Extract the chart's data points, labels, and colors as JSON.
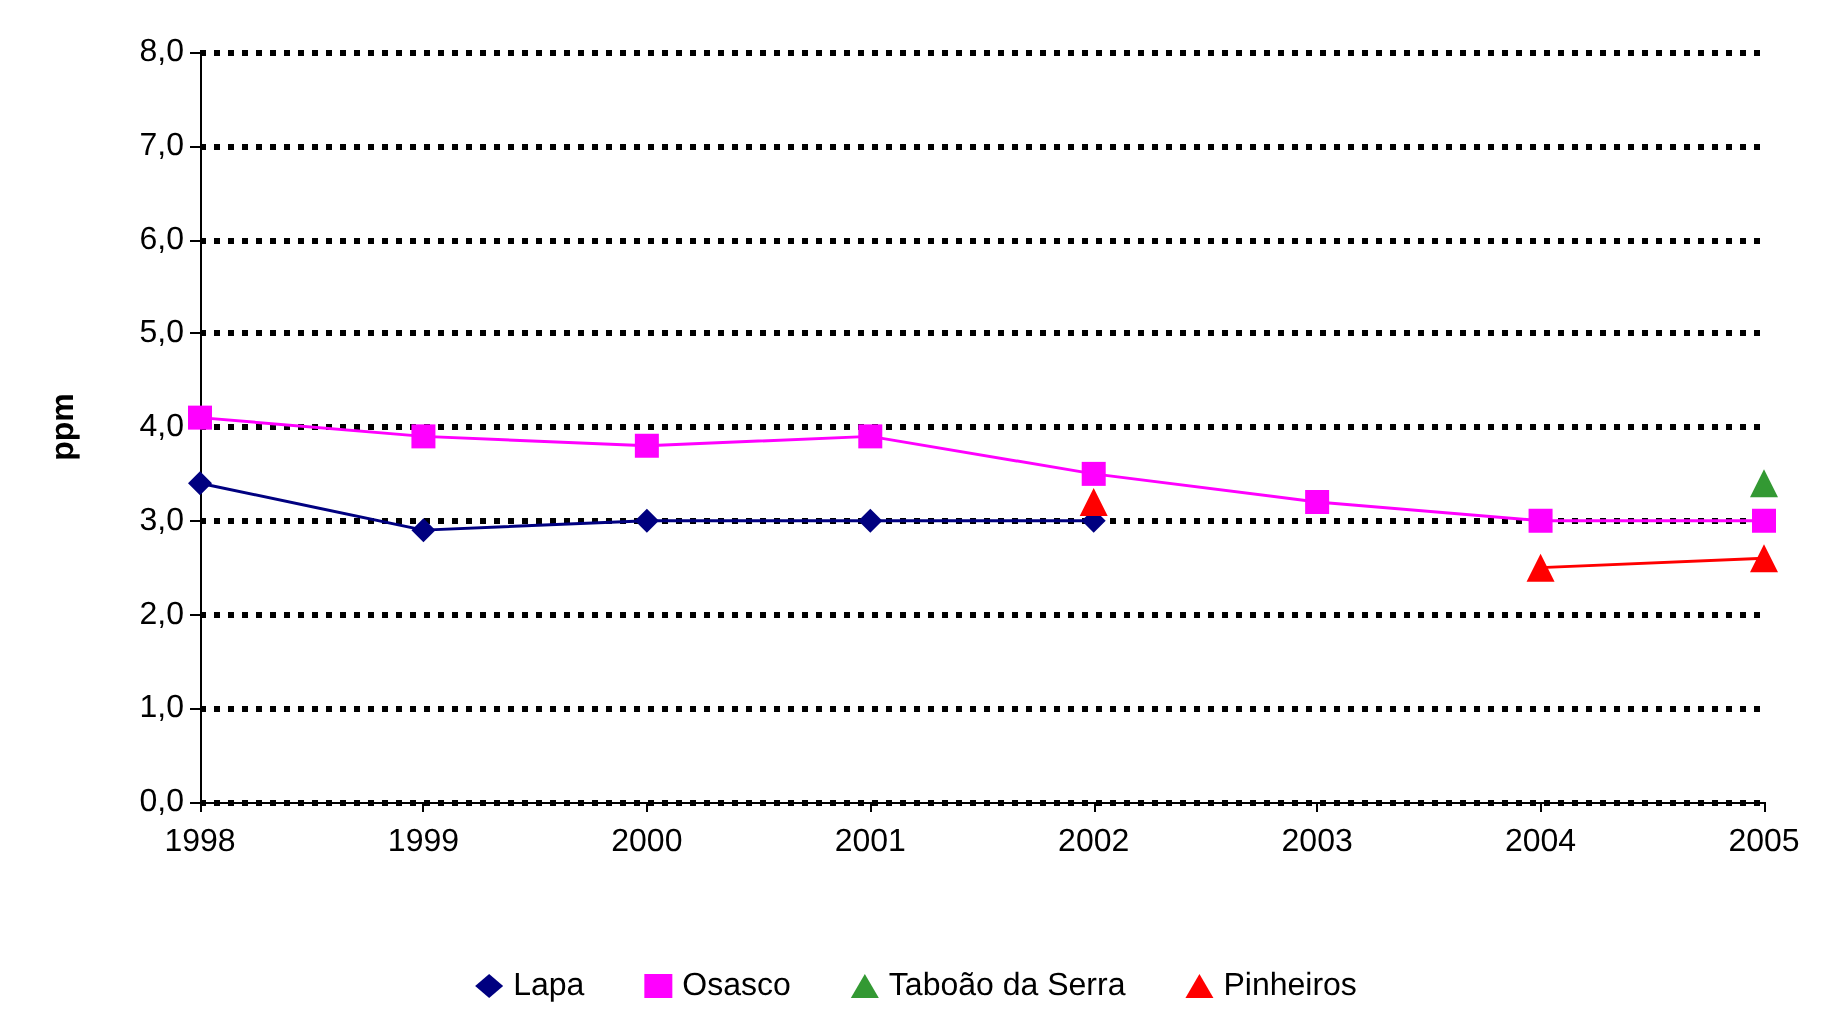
{
  "chart_data": {
    "type": "line",
    "ylabel": "ppm",
    "x": [
      1998,
      1999,
      2000,
      2001,
      2002,
      2003,
      2004,
      2005
    ],
    "xlim": [
      1998,
      2005
    ],
    "xticks": [
      1998,
      1999,
      2000,
      2001,
      2002,
      2003,
      2004,
      2005
    ],
    "ylim": [
      0,
      8
    ],
    "yticks": [
      {
        "value": 0,
        "label": "0,0"
      },
      {
        "value": 1,
        "label": "1,0"
      },
      {
        "value": 2,
        "label": "2,0"
      },
      {
        "value": 3,
        "label": "3,0"
      },
      {
        "value": 4,
        "label": "4,0"
      },
      {
        "value": 5,
        "label": "5,0"
      },
      {
        "value": 6,
        "label": "6,0"
      },
      {
        "value": 7,
        "label": "7,0"
      },
      {
        "value": 8,
        "label": "8,0"
      }
    ],
    "grid": "y",
    "legend": "bottom",
    "series": [
      {
        "name": "Lapa",
        "color": "#000080",
        "marker": "diamond",
        "values": [
          3.4,
          2.9,
          3.0,
          3.0,
          3.0,
          null,
          null,
          null
        ]
      },
      {
        "name": "Osasco",
        "color": "#ff00ff",
        "marker": "square",
        "values": [
          4.1,
          3.9,
          3.8,
          3.9,
          3.5,
          3.2,
          3.0,
          3.0
        ]
      },
      {
        "name": "Taboão da Serra",
        "color": "#339933",
        "marker": "triangle",
        "values": [
          null,
          null,
          null,
          null,
          null,
          null,
          null,
          3.4
        ]
      },
      {
        "name": "Pinheiros",
        "color": "#ff0000",
        "marker": "triangle",
        "values": [
          null,
          null,
          null,
          null,
          3.2,
          null,
          2.5,
          2.6
        ]
      }
    ]
  }
}
